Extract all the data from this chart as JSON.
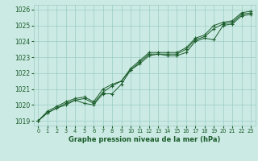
{
  "title": "Graphe pression niveau de la mer (hPa)",
  "background_color": "#cceae4",
  "grid_color": "#99ccc4",
  "line_color": "#1a5c2a",
  "xlim": [
    -0.5,
    23.5
  ],
  "ylim": [
    1018.7,
    1026.3
  ],
  "xticks": [
    0,
    1,
    2,
    3,
    4,
    5,
    6,
    7,
    8,
    9,
    10,
    11,
    12,
    13,
    14,
    15,
    16,
    17,
    18,
    19,
    20,
    21,
    22,
    23
  ],
  "yticks": [
    1019,
    1020,
    1021,
    1022,
    1023,
    1024,
    1025,
    1026
  ],
  "series": [
    [
      1019.0,
      1019.5,
      1019.8,
      1020.0,
      1020.3,
      1020.1,
      1020.0,
      1020.7,
      1020.7,
      1021.3,
      1022.2,
      1022.6,
      1023.1,
      1023.2,
      1023.1,
      1023.1,
      1023.3,
      1024.0,
      1024.2,
      1024.1,
      1025.0,
      1025.1,
      1025.6,
      1025.7
    ],
    [
      1019.0,
      1019.5,
      1019.8,
      1020.1,
      1020.3,
      1020.4,
      1020.1,
      1020.8,
      1021.2,
      1021.5,
      1022.2,
      1022.7,
      1023.2,
      1023.2,
      1023.2,
      1023.2,
      1023.5,
      1024.1,
      1024.3,
      1024.8,
      1025.1,
      1025.2,
      1025.7,
      1025.8
    ],
    [
      1019.0,
      1019.6,
      1019.9,
      1020.2,
      1020.4,
      1020.5,
      1020.2,
      1021.0,
      1021.3,
      1021.5,
      1022.3,
      1022.8,
      1023.3,
      1023.3,
      1023.3,
      1023.3,
      1023.6,
      1024.2,
      1024.4,
      1025.0,
      1025.2,
      1025.3,
      1025.8,
      1025.9
    ]
  ]
}
